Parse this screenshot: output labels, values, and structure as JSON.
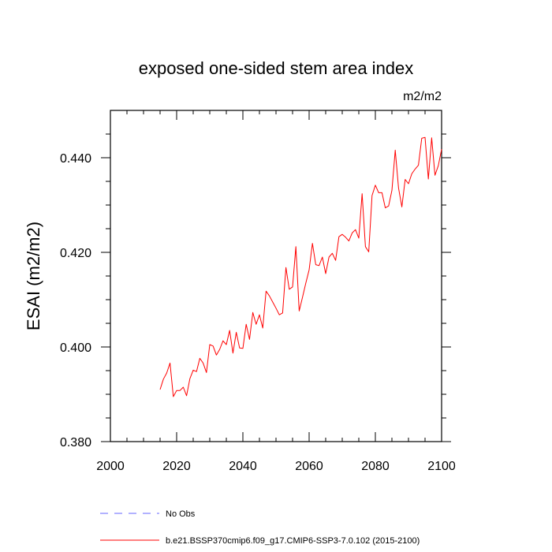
{
  "chart_data": {
    "type": "line",
    "title": "exposed one-sided stem area index",
    "units": "m2/m2",
    "xlabel": "",
    "ylabel": "ESAI  (m2/m2)",
    "xlim": [
      2000,
      2100
    ],
    "ylim": [
      0.38,
      0.45
    ],
    "x_ticks": [
      2000,
      2020,
      2040,
      2060,
      2080,
      2100
    ],
    "x_tick_labels": [
      "2000",
      "2020",
      "2040",
      "2060",
      "2080",
      "2100"
    ],
    "y_ticks": [
      0.38,
      0.4,
      0.42,
      0.44
    ],
    "y_tick_labels": [
      "0.380",
      "0.400",
      "0.420",
      "0.440"
    ],
    "grid": false,
    "series": [
      {
        "name": "b.e21.BSSP370cmip6.f09_g17.CMIP6-SSP3-7.0.102 (2015-2100)",
        "color": "#ff0000",
        "style": "solid",
        "x": [
          2015,
          2016,
          2017,
          2018,
          2019,
          2020,
          2021,
          2022,
          2023,
          2024,
          2025,
          2026,
          2027,
          2028,
          2029,
          2030,
          2031,
          2032,
          2033,
          2034,
          2035,
          2036,
          2037,
          2038,
          2039,
          2040,
          2041,
          2042,
          2043,
          2044,
          2045,
          2046,
          2047,
          2048,
          2049,
          2050,
          2051,
          2052,
          2053,
          2054,
          2055,
          2056,
          2057,
          2058,
          2059,
          2060,
          2061,
          2062,
          2063,
          2064,
          2065,
          2066,
          2067,
          2068,
          2069,
          2070,
          2071,
          2072,
          2073,
          2074,
          2075,
          2076,
          2077,
          2078,
          2079,
          2080,
          2081,
          2082,
          2083,
          2084,
          2085,
          2086,
          2087,
          2088,
          2089,
          2090,
          2091,
          2092,
          2093,
          2094,
          2095,
          2096,
          2097,
          2098,
          2099,
          2100
        ],
        "values": [
          0.391,
          0.3932,
          0.3945,
          0.3966,
          0.3895,
          0.3908,
          0.3908,
          0.3915,
          0.3897,
          0.3933,
          0.3951,
          0.3948,
          0.3976,
          0.3966,
          0.3946,
          0.4005,
          0.4002,
          0.3983,
          0.3995,
          0.4013,
          0.4005,
          0.4035,
          0.3987,
          0.4031,
          0.3998,
          0.3997,
          0.4048,
          0.4016,
          0.4073,
          0.4048,
          0.4068,
          0.404,
          0.4118,
          0.4108,
          0.4095,
          0.4082,
          0.4068,
          0.4072,
          0.4168,
          0.4122,
          0.4127,
          0.4212,
          0.4076,
          0.4105,
          0.4135,
          0.4163,
          0.4219,
          0.4174,
          0.4172,
          0.419,
          0.4155,
          0.419,
          0.4198,
          0.4183,
          0.4233,
          0.4238,
          0.4232,
          0.4224,
          0.4241,
          0.4248,
          0.423,
          0.4324,
          0.4212,
          0.4201,
          0.432,
          0.4342,
          0.4326,
          0.4326,
          0.4294,
          0.4298,
          0.4331,
          0.4416,
          0.4336,
          0.4296,
          0.4354,
          0.4345,
          0.4366,
          0.4376,
          0.4384,
          0.4441,
          0.4443,
          0.4355,
          0.4442,
          0.4363,
          0.4383,
          0.4418
        ]
      }
    ],
    "legend": {
      "position": "bottom-left",
      "entries": [
        {
          "label": "No Obs",
          "color": "#6666ff",
          "style": "dashed"
        },
        {
          "label": "b.e21.BSSP370cmip6.f09_g17.CMIP6-SSP3-7.0.102 (2015-2100)",
          "color": "#ff0000",
          "style": "solid"
        }
      ]
    }
  }
}
